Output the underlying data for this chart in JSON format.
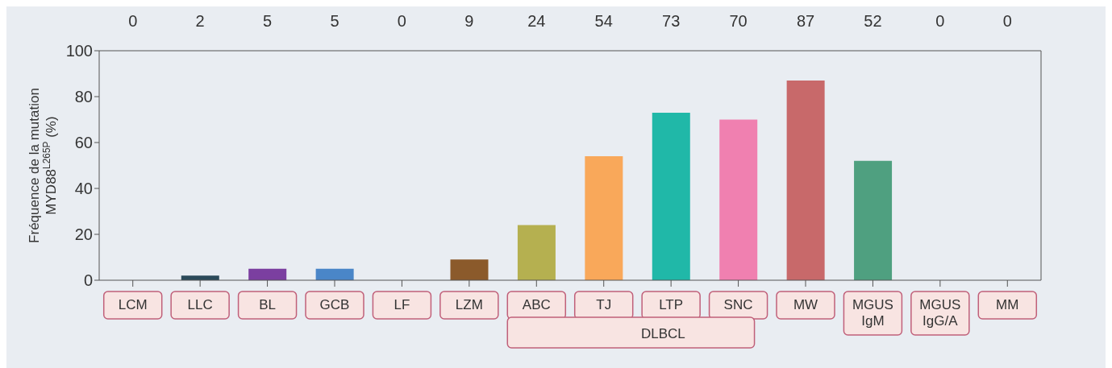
{
  "chart_data": {
    "type": "bar",
    "ylabel": "Fréquence de la mutation MYD88$^{L265P}$ (%)",
    "categories": [
      "LCM",
      "LLC",
      "BL",
      "GCB",
      "LF",
      "LZM",
      "ABC",
      "TJ",
      "LTP",
      "SNC",
      "MW",
      "MGUS IgM",
      "MGUS IgG/A",
      "MM"
    ],
    "values": [
      0,
      2,
      5,
      5,
      0,
      9,
      24,
      54,
      73,
      70,
      87,
      52,
      0,
      0
    ],
    "colors": [
      "#999999",
      "#2b4a5a",
      "#7b3fa0",
      "#4a86c8",
      "#999999",
      "#8b5a2b",
      "#b5b050",
      "#f9a85a",
      "#20b8a8",
      "#f080b0",
      "#c8696a",
      "#4fa080",
      "#999999",
      "#999999"
    ],
    "ylim": [
      0,
      100
    ],
    "yticks": [
      0,
      20,
      40,
      60,
      80,
      100
    ],
    "data_labels": true,
    "annotations": [
      "DLBCL"
    ]
  }
}
